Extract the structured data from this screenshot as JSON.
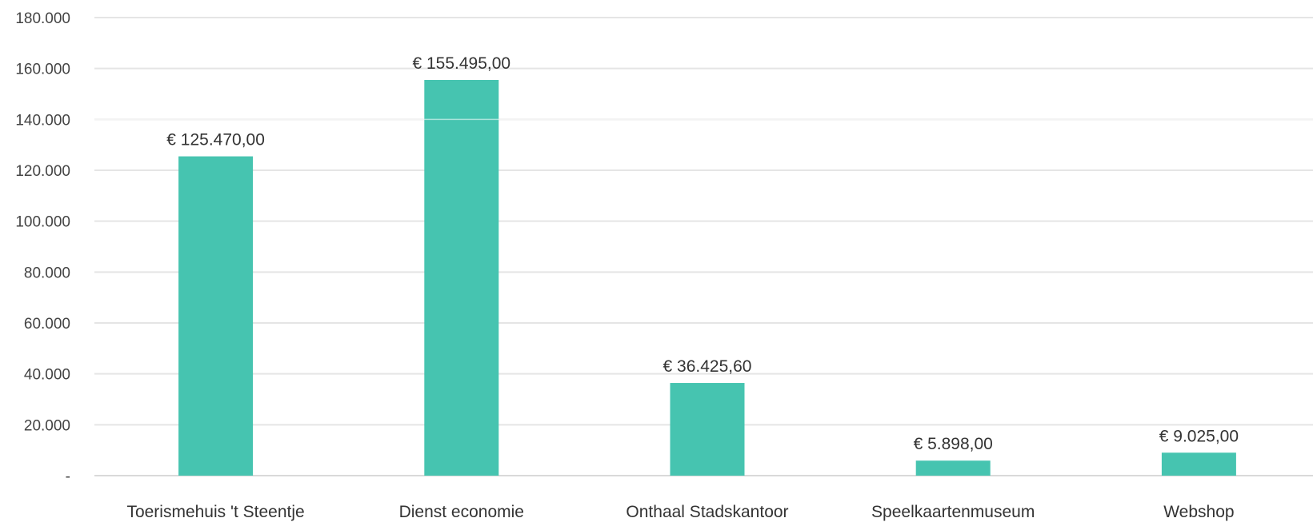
{
  "chart_data": {
    "type": "bar",
    "categories": [
      "Toerismehuis 't Steentje",
      "Dienst economie",
      "Onthaal Stadskantoor",
      "Speelkaartenmuseum",
      "Webshop"
    ],
    "values": [
      125470,
      155495,
      36425.6,
      5898,
      9025
    ],
    "data_labels": [
      "€ 125.470,00",
      "€ 155.495,00",
      "€ 36.425,60",
      "€ 5.898,00",
      "€ 9.025,00"
    ],
    "y_ticks": [
      0,
      20000,
      40000,
      60000,
      80000,
      100000,
      120000,
      140000,
      160000,
      180000
    ],
    "y_tick_labels": [
      "-",
      "20.000",
      "40.000",
      "60.000",
      "80.000",
      "100.000",
      "120.000",
      "140.000",
      "160.000",
      "180.000"
    ],
    "ylim": [
      0,
      180000
    ],
    "grid": true,
    "legend": "none",
    "title": "",
    "xlabel": "",
    "ylabel": "",
    "bar_color": "#46c4b0"
  }
}
